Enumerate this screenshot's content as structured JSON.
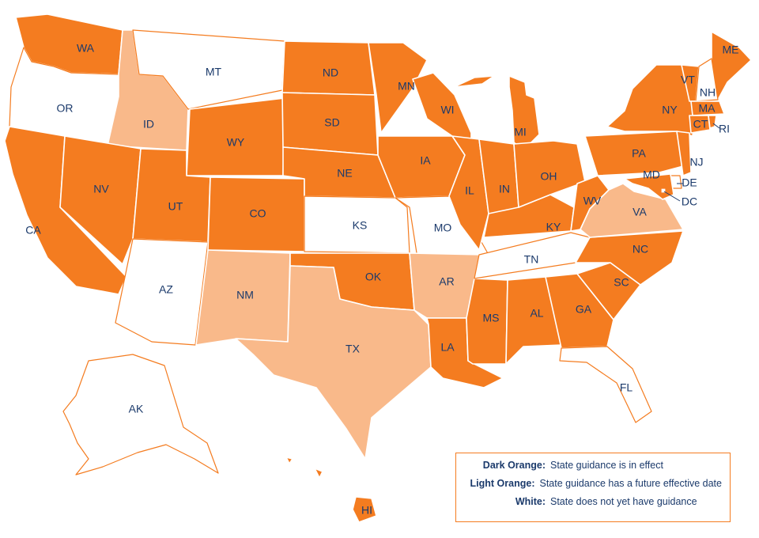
{
  "colors": {
    "in_effect": "#f47c20",
    "future": "#f9b98a",
    "none": "#ffffff",
    "outline": "#f47c20",
    "label": "#1b3a6b"
  },
  "legend": [
    {
      "key": "Dark Orange:",
      "desc": "State guidance is in effect",
      "status": "in_effect"
    },
    {
      "key": "Light Orange:",
      "desc": "State guidance has a future effective date",
      "status": "future"
    },
    {
      "key": "White:",
      "desc": "State does not yet have guidance",
      "status": "none"
    }
  ],
  "states": [
    {
      "code": "WA",
      "status": "in_effect"
    },
    {
      "code": "OR",
      "status": "none"
    },
    {
      "code": "CA",
      "status": "in_effect"
    },
    {
      "code": "ID",
      "status": "future"
    },
    {
      "code": "NV",
      "status": "in_effect"
    },
    {
      "code": "MT",
      "status": "none"
    },
    {
      "code": "WY",
      "status": "in_effect"
    },
    {
      "code": "UT",
      "status": "in_effect"
    },
    {
      "code": "AZ",
      "status": "none"
    },
    {
      "code": "CO",
      "status": "in_effect"
    },
    {
      "code": "NM",
      "status": "future"
    },
    {
      "code": "ND",
      "status": "in_effect"
    },
    {
      "code": "SD",
      "status": "in_effect"
    },
    {
      "code": "NE",
      "status": "in_effect"
    },
    {
      "code": "KS",
      "status": "none"
    },
    {
      "code": "OK",
      "status": "in_effect"
    },
    {
      "code": "TX",
      "status": "future"
    },
    {
      "code": "MN",
      "status": "in_effect"
    },
    {
      "code": "IA",
      "status": "in_effect"
    },
    {
      "code": "MO",
      "status": "none"
    },
    {
      "code": "AR",
      "status": "future"
    },
    {
      "code": "LA",
      "status": "in_effect"
    },
    {
      "code": "WI",
      "status": "in_effect"
    },
    {
      "code": "IL",
      "status": "in_effect"
    },
    {
      "code": "MS",
      "status": "in_effect"
    },
    {
      "code": "MI",
      "status": "in_effect"
    },
    {
      "code": "IN",
      "status": "in_effect"
    },
    {
      "code": "KY",
      "status": "in_effect"
    },
    {
      "code": "TN",
      "status": "none"
    },
    {
      "code": "AL",
      "status": "in_effect"
    },
    {
      "code": "OH",
      "status": "in_effect"
    },
    {
      "code": "WV",
      "status": "in_effect"
    },
    {
      "code": "GA",
      "status": "in_effect"
    },
    {
      "code": "FL",
      "status": "none"
    },
    {
      "code": "SC",
      "status": "in_effect"
    },
    {
      "code": "NC",
      "status": "in_effect"
    },
    {
      "code": "VA",
      "status": "future"
    },
    {
      "code": "PA",
      "status": "in_effect"
    },
    {
      "code": "NY",
      "status": "in_effect"
    },
    {
      "code": "ME",
      "status": "in_effect"
    },
    {
      "code": "VT",
      "status": "in_effect"
    },
    {
      "code": "NH",
      "status": "none"
    },
    {
      "code": "MA",
      "status": "in_effect"
    },
    {
      "code": "CT",
      "status": "in_effect"
    },
    {
      "code": "RI",
      "status": "in_effect"
    },
    {
      "code": "NJ",
      "status": "in_effect"
    },
    {
      "code": "DE",
      "status": "none"
    },
    {
      "code": "MD",
      "status": "in_effect"
    },
    {
      "code": "DC",
      "status": "none"
    },
    {
      "code": "AK",
      "status": "none"
    },
    {
      "code": "HI",
      "status": "in_effect"
    }
  ]
}
